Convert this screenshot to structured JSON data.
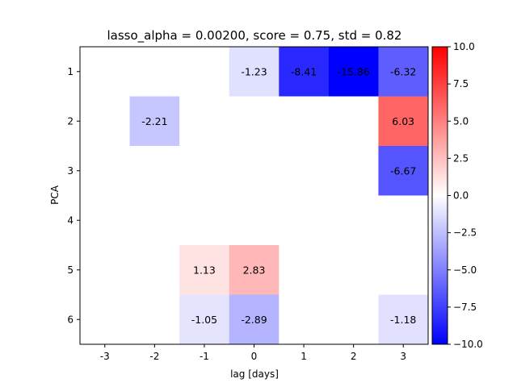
{
  "chart_data": {
    "type": "heatmap",
    "title": "lasso_alpha = 0.00200, score = 0.75, std = 0.82",
    "xlabel": "lag [days]",
    "ylabel": "PCA",
    "x": [
      "-3",
      "-2",
      "-1",
      "0",
      "1",
      "2",
      "3"
    ],
    "y": [
      "1",
      "2",
      "3",
      "4",
      "5",
      "6"
    ],
    "values": [
      [
        0,
        0,
        0,
        -1.23,
        -8.41,
        -15.86,
        -6.32
      ],
      [
        0,
        -2.21,
        0,
        0,
        0,
        0,
        6.03
      ],
      [
        0,
        0,
        0,
        0,
        0,
        0,
        -6.67
      ],
      [
        0,
        0,
        0,
        0,
        0,
        0,
        0
      ],
      [
        0,
        0,
        1.13,
        2.83,
        0,
        0,
        0
      ],
      [
        0,
        0,
        -1.05,
        -2.89,
        0,
        0,
        -1.18
      ]
    ],
    "cell_labels": [
      [
        "",
        "",
        "",
        "-1.23",
        "-8.41",
        "-15.86",
        "-6.32"
      ],
      [
        "",
        "-2.21",
        "",
        "",
        "",
        "",
        "6.03"
      ],
      [
        "",
        "",
        "",
        "",
        "",
        "",
        "-6.67"
      ],
      [
        "",
        "",
        "",
        "",
        "",
        "",
        ""
      ],
      [
        "",
        "",
        "1.13",
        "2.83",
        "",
        "",
        ""
      ],
      [
        "",
        "",
        "-1.05",
        "-2.89",
        "",
        "",
        "-1.18"
      ]
    ],
    "colormap": "bwr",
    "colors": {
      "low": "#0000ff",
      "mid": "#ffffff",
      "high": "#ff0000"
    },
    "color_range": [
      -10,
      10
    ],
    "colorbar_ticks": [
      "10.0",
      "7.5",
      "5.0",
      "2.5",
      "0.0",
      "−2.5",
      "−5.0",
      "−7.5",
      "−10.0"
    ],
    "colorbar_tick_values": [
      10,
      7.5,
      5,
      2.5,
      0,
      -2.5,
      -5,
      -7.5,
      -10
    ],
    "grid": false
  }
}
